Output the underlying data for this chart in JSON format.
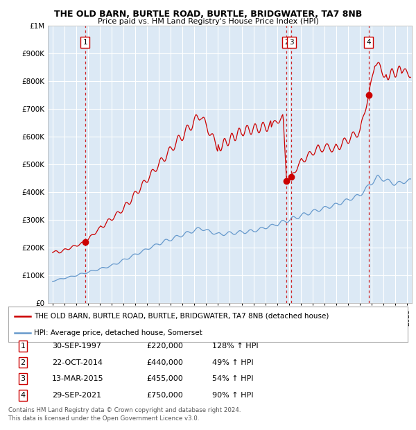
{
  "title1": "THE OLD BARN, BURTLE ROAD, BURTLE, BRIDGWATER, TA7 8NB",
  "title2": "Price paid vs. HM Land Registry's House Price Index (HPI)",
  "background_color": "#dce9f5",
  "red_color": "#cc0000",
  "blue_color": "#6699cc",
  "transactions": [
    {
      "num": 1,
      "date_x": 1997.75,
      "price": 220000,
      "label": "30-SEP-1997",
      "pct": "128% ↑ HPI"
    },
    {
      "num": 2,
      "date_x": 2014.8,
      "price": 440000,
      "label": "22-OCT-2014",
      "pct": "49% ↑ HPI"
    },
    {
      "num": 3,
      "date_x": 2015.2,
      "price": 455000,
      "label": "13-MAR-2015",
      "pct": "54% ↑ HPI"
    },
    {
      "num": 4,
      "date_x": 2021.75,
      "price": 750000,
      "label": "29-SEP-2021",
      "pct": "90% ↑ HPI"
    }
  ],
  "ylim": [
    0,
    1000000
  ],
  "xlim_start": 1994.6,
  "xlim_end": 2025.4,
  "yticks": [
    0,
    100000,
    200000,
    300000,
    400000,
    500000,
    600000,
    700000,
    800000,
    900000,
    1000000
  ],
  "ytick_labels": [
    "£0",
    "£100K",
    "£200K",
    "£300K",
    "£400K",
    "£500K",
    "£600K",
    "£700K",
    "£800K",
    "£900K",
    "£1M"
  ],
  "legend_line1": "THE OLD BARN, BURTLE ROAD, BURTLE, BRIDGWATER, TA7 8NB (detached house)",
  "legend_line2": "HPI: Average price, detached house, Somerset",
  "footer1": "Contains HM Land Registry data © Crown copyright and database right 2024.",
  "footer2": "This data is licensed under the Open Government Licence v3.0."
}
